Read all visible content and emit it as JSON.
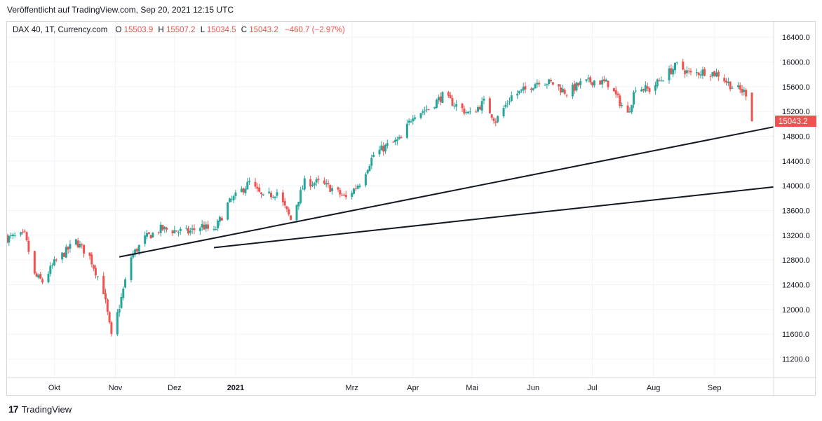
{
  "header": {
    "published": "Veröffentlicht auf TradingView.com, Sep 20, 2021 12:15 UTC"
  },
  "legend": {
    "symbol": "DAX 40, 1T, Currency.com",
    "o_label": "O",
    "o_value": "15503.9",
    "h_label": "H",
    "h_value": "15507.2",
    "l_label": "L",
    "l_value": "15034.5",
    "c_label": "C",
    "c_value": "15043.2",
    "change": "−460.7 (−2.97%)"
  },
  "price_tag": "15043.2",
  "footer": {
    "brand": "TradingView",
    "logo_mark": "17"
  },
  "colors": {
    "up": "#26a69a",
    "down": "#ef5350",
    "grid": "#f0f3fa",
    "trendline": "#131722"
  },
  "chart_data": {
    "type": "candlestick",
    "symbol": "DAX 40",
    "interval": "1T",
    "x_range": [
      "2020-09-07",
      "2021-10-01"
    ],
    "ylim": [
      10900,
      16650
    ],
    "y_ticks": [
      11200,
      11600,
      12000,
      12400,
      12800,
      13200,
      13600,
      14000,
      14400,
      14800,
      15200,
      15600,
      16000,
      16400
    ],
    "y_tick_labels": [
      "11200.0",
      "11600.0",
      "12000.0",
      "12400.0",
      "12800.0",
      "13200.0",
      "13600.0",
      "14000.0",
      "14400.0",
      "14800.0",
      "15200.0",
      "15600.0",
      "16000.0",
      "16400.0"
    ],
    "x_ticks": [
      {
        "date": "2020-10-01",
        "label": "Okt"
      },
      {
        "date": "2020-11-01",
        "label": "Nov"
      },
      {
        "date": "2020-12-01",
        "label": "Dez"
      },
      {
        "date": "2021-01-01",
        "label": "2021"
      },
      {
        "date": "2021-03-01",
        "label": "Mrz"
      },
      {
        "date": "2021-04-01",
        "label": "Apr"
      },
      {
        "date": "2021-05-01",
        "label": "Mai"
      },
      {
        "date": "2021-06-01",
        "label": "Jun"
      },
      {
        "date": "2021-07-01",
        "label": "Jul"
      },
      {
        "date": "2021-08-01",
        "label": "Aug"
      },
      {
        "date": "2021-09-01",
        "label": "Sep"
      }
    ],
    "close_path": [
      {
        "date": "2020-09-07",
        "close": 13150
      },
      {
        "date": "2020-09-16",
        "close": 13200
      },
      {
        "date": "2020-09-21",
        "close": 12550
      },
      {
        "date": "2020-09-25",
        "close": 12450
      },
      {
        "date": "2020-10-01",
        "close": 12750
      },
      {
        "date": "2020-10-12",
        "close": 13100
      },
      {
        "date": "2020-10-19",
        "close": 12850
      },
      {
        "date": "2020-10-26",
        "close": 12300
      },
      {
        "date": "2020-10-30",
        "close": 11550
      },
      {
        "date": "2020-11-03",
        "close": 12050
      },
      {
        "date": "2020-11-09",
        "close": 12850
      },
      {
        "date": "2020-11-16",
        "close": 13150
      },
      {
        "date": "2020-11-24",
        "close": 13300
      },
      {
        "date": "2020-12-08",
        "close": 13250
      },
      {
        "date": "2020-12-15",
        "close": 13350
      },
      {
        "date": "2020-12-21",
        "close": 13250
      },
      {
        "date": "2020-12-28",
        "close": 13700
      },
      {
        "date": "2021-01-08",
        "close": 14050
      },
      {
        "date": "2021-01-15",
        "close": 13800
      },
      {
        "date": "2021-01-22",
        "close": 13900
      },
      {
        "date": "2021-01-29",
        "close": 13450
      },
      {
        "date": "2021-02-05",
        "close": 14050
      },
      {
        "date": "2021-02-12",
        "close": 14050
      },
      {
        "date": "2021-02-19",
        "close": 13950
      },
      {
        "date": "2021-02-26",
        "close": 13800
      },
      {
        "date": "2021-03-05",
        "close": 14050
      },
      {
        "date": "2021-03-12",
        "close": 14500
      },
      {
        "date": "2021-03-19",
        "close": 14650
      },
      {
        "date": "2021-03-26",
        "close": 14750
      },
      {
        "date": "2021-04-01",
        "close": 15150
      },
      {
        "date": "2021-04-09",
        "close": 15250
      },
      {
        "date": "2021-04-16",
        "close": 15450
      },
      {
        "date": "2021-04-23",
        "close": 15300
      },
      {
        "date": "2021-04-30",
        "close": 15150
      },
      {
        "date": "2021-05-07",
        "close": 15350
      },
      {
        "date": "2021-05-13",
        "close": 15050
      },
      {
        "date": "2021-05-21",
        "close": 15450
      },
      {
        "date": "2021-05-28",
        "close": 15550
      },
      {
        "date": "2021-06-04",
        "close": 15700
      },
      {
        "date": "2021-06-11",
        "close": 15650
      },
      {
        "date": "2021-06-18",
        "close": 15500
      },
      {
        "date": "2021-06-25",
        "close": 15650
      },
      {
        "date": "2021-07-02",
        "close": 15700
      },
      {
        "date": "2021-07-09",
        "close": 15650
      },
      {
        "date": "2021-07-19",
        "close": 15150
      },
      {
        "date": "2021-07-23",
        "close": 15600
      },
      {
        "date": "2021-07-30",
        "close": 15550
      },
      {
        "date": "2021-08-06",
        "close": 15750
      },
      {
        "date": "2021-08-13",
        "close": 15950
      },
      {
        "date": "2021-08-20",
        "close": 15800
      },
      {
        "date": "2021-08-27",
        "close": 15850
      },
      {
        "date": "2021-09-03",
        "close": 15800
      },
      {
        "date": "2021-09-10",
        "close": 15600
      },
      {
        "date": "2021-09-17",
        "close": 15500
      },
      {
        "date": "2021-09-20",
        "close": 15043.2
      }
    ],
    "trendlines": [
      {
        "start": {
          "date": "2020-11-03",
          "price": 12850
        },
        "end": {
          "date": "2021-10-01",
          "price": 14950
        }
      },
      {
        "start": {
          "date": "2020-12-21",
          "price": 13000
        },
        "end": {
          "date": "2021-10-01",
          "price": 13980
        }
      }
    ],
    "last_price": 15043.2,
    "grid": true
  }
}
